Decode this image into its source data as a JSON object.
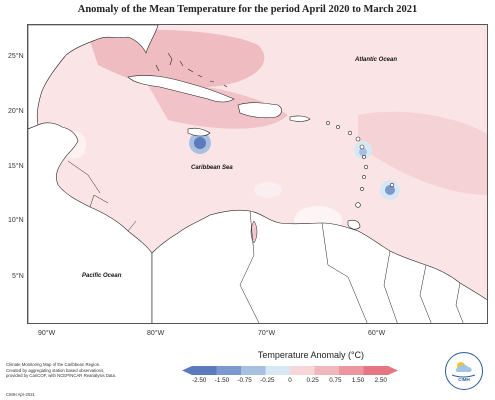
{
  "title": "Anomaly of the Mean Temperature for the period April 2020 to March 2021",
  "map": {
    "lat_ticks": [
      "25°N",
      "20°N",
      "15°N",
      "10°N",
      "5°N"
    ],
    "lon_ticks": [
      "90°W",
      "80°W",
      "70°W",
      "60°W"
    ],
    "labels": {
      "atlantic": "Atlantic Ocean",
      "caribbean": "Caribbean Sea",
      "pacific": "Pacific Ocean"
    }
  },
  "legend": {
    "title": "Temperature Anomaly (°C)",
    "ticks": [
      "-2.50",
      "-1.50",
      "-0.75",
      "-0.25",
      "0",
      "0.25",
      "0.75",
      "1.50",
      "2.50"
    ],
    "colors": [
      "#5b7bbd",
      "#7c98cf",
      "#a7bfe0",
      "#d8e8f2",
      "#f7d6da",
      "#f2b6bd",
      "#ec96a0",
      "#e67582"
    ]
  },
  "credit": {
    "lines": [
      "Climate Monitoring Map of the Caribbean Region.",
      "Created by aggregating station based observations,",
      "provided by CariCOF, with NCEP/NCAR Reanalysis Data."
    ],
    "stamp": "CIMH Apr-2021"
  },
  "logo": {
    "text": "CIMH",
    "icon": "cimh-logo-icon"
  }
}
